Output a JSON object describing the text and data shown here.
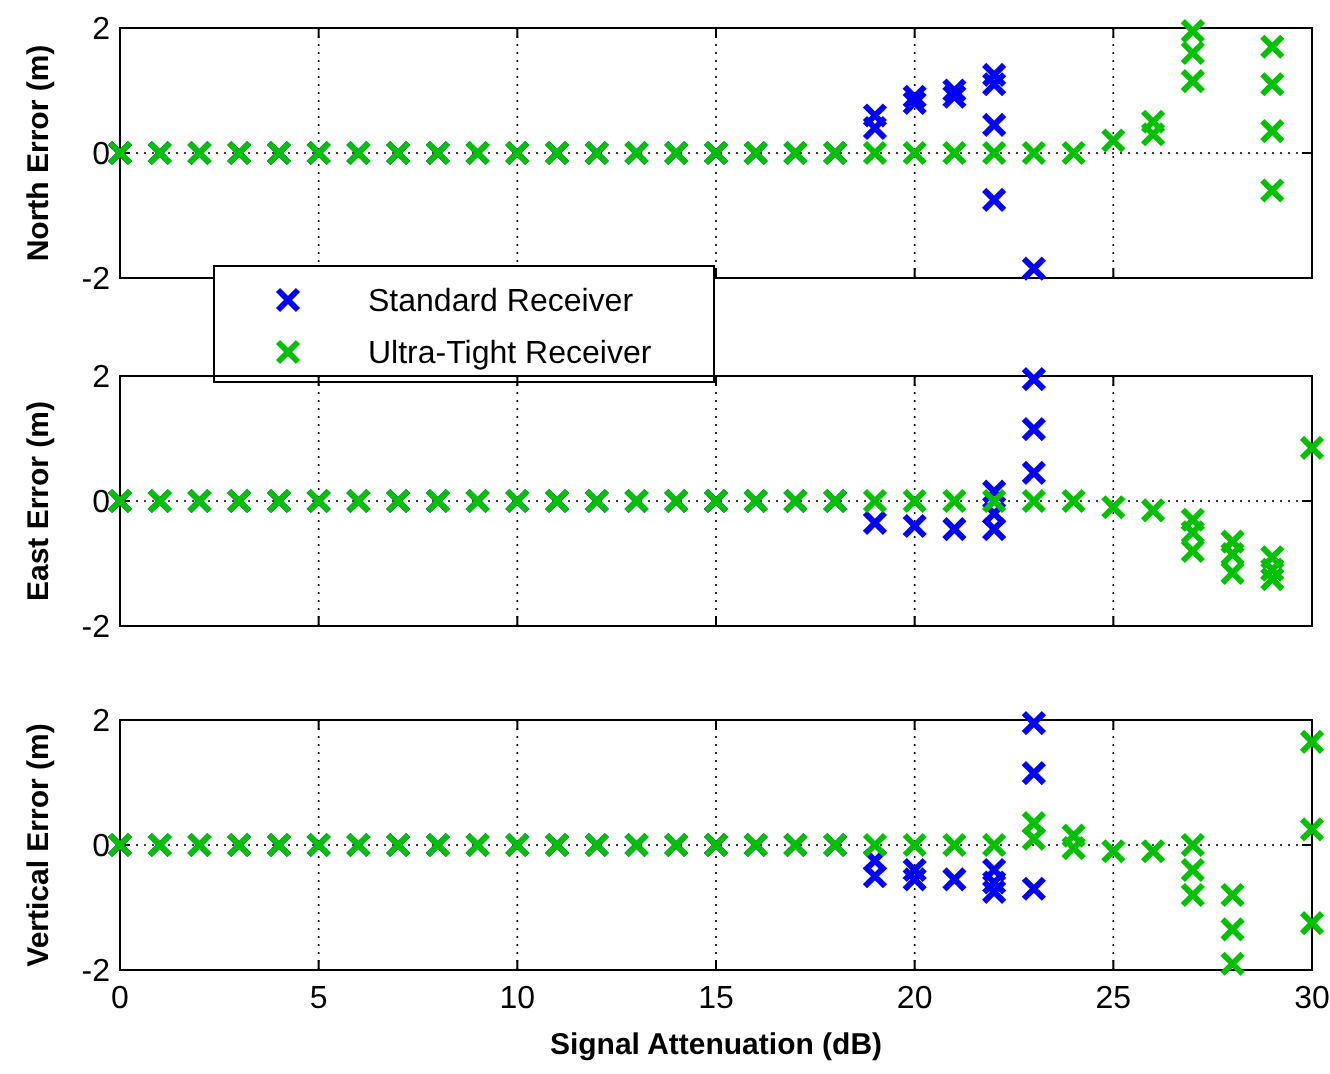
{
  "chart_data": [
    {
      "type": "scatter",
      "ylabel": "North Error (m)",
      "xlim": [
        0,
        30
      ],
      "xticks": [
        0,
        5,
        10,
        15,
        20,
        25,
        30
      ],
      "ylim": [
        -2,
        2
      ],
      "yticks": [
        -2,
        0,
        2
      ],
      "grid": true,
      "marker": "cross",
      "tick_labels": "y",
      "legend": "bottom left",
      "series": [
        {
          "name": "Standard Receiver",
          "color": "#0000ff",
          "x": [
            0,
            1,
            2,
            3,
            4,
            5,
            6,
            7,
            8,
            9,
            10,
            11,
            12,
            13,
            14,
            15,
            16,
            17,
            18,
            19,
            19,
            20,
            20,
            21,
            21,
            22,
            22,
            22,
            22,
            23
          ],
          "values": [
            0,
            0,
            0,
            0,
            0,
            0,
            0,
            0,
            0,
            0,
            0,
            0,
            0,
            0,
            0,
            0,
            0,
            0,
            0,
            0.6,
            0.4,
            0.9,
            0.8,
            1.0,
            0.9,
            1.25,
            1.1,
            0.45,
            -0.75,
            -1.85
          ]
        },
        {
          "name": "Ultra-Tight Receiver",
          "color": "#00c000",
          "x": [
            0,
            1,
            2,
            3,
            4,
            5,
            6,
            7,
            8,
            9,
            10,
            11,
            12,
            13,
            14,
            15,
            16,
            17,
            18,
            19,
            20,
            21,
            22,
            23,
            24,
            25,
            26,
            26,
            27,
            27,
            27,
            29,
            29,
            29,
            29
          ],
          "values": [
            0,
            0,
            0,
            0,
            0,
            0,
            0,
            0,
            0,
            0,
            0,
            0,
            0,
            0,
            0,
            0,
            0,
            0,
            0,
            0,
            0,
            0,
            0,
            0,
            0,
            0.2,
            0.5,
            0.3,
            1.95,
            1.6,
            1.15,
            1.7,
            1.1,
            0.35,
            -0.6
          ]
        }
      ]
    },
    {
      "type": "scatter",
      "ylabel": "East Error (m)",
      "xlim": [
        0,
        30
      ],
      "xticks": [
        0,
        5,
        10,
        15,
        20,
        25,
        30
      ],
      "ylim": [
        -2,
        2
      ],
      "yticks": [
        -2,
        0,
        2
      ],
      "grid": true,
      "marker": "cross",
      "tick_labels": "y",
      "series": [
        {
          "color": "#0000ff",
          "x": [
            0,
            1,
            2,
            3,
            4,
            5,
            6,
            7,
            8,
            9,
            10,
            11,
            12,
            13,
            14,
            15,
            16,
            17,
            18,
            19,
            20,
            21,
            22,
            22,
            22,
            23,
            23,
            23
          ],
          "values": [
            0,
            0,
            0,
            0,
            0,
            0,
            0,
            0,
            0,
            0,
            0,
            0,
            0,
            0,
            0,
            0,
            0,
            0,
            0,
            -0.35,
            -0.4,
            -0.45,
            0.15,
            -0.2,
            -0.45,
            1.95,
            1.15,
            0.45
          ]
        },
        {
          "color": "#00c000",
          "x": [
            0,
            1,
            2,
            3,
            4,
            5,
            6,
            7,
            8,
            9,
            10,
            11,
            12,
            13,
            14,
            15,
            16,
            17,
            18,
            19,
            20,
            21,
            22,
            23,
            24,
            25,
            26,
            27,
            27,
            27,
            28,
            28,
            28,
            29,
            29,
            29,
            30
          ],
          "values": [
            0,
            0,
            0,
            0,
            0,
            0,
            0,
            0,
            0,
            0,
            0,
            0,
            0,
            0,
            0,
            0,
            0,
            0,
            0,
            0,
            0,
            0,
            0,
            0,
            0,
            -0.1,
            -0.15,
            -0.3,
            -0.5,
            -0.8,
            -0.65,
            -0.85,
            -1.15,
            -0.9,
            -1.1,
            -1.25,
            0.85
          ]
        }
      ]
    },
    {
      "type": "scatter",
      "ylabel": "Vertical Error (m)",
      "xlabel": "Signal Attenuation (dB)",
      "xlim": [
        0,
        30
      ],
      "xticks": [
        0,
        5,
        10,
        15,
        20,
        25,
        30
      ],
      "ylim": [
        -2,
        2
      ],
      "yticks": [
        -2,
        0,
        2
      ],
      "grid": true,
      "marker": "cross",
      "series": [
        {
          "color": "#0000ff",
          "x": [
            0,
            1,
            2,
            3,
            4,
            5,
            6,
            7,
            8,
            9,
            10,
            11,
            12,
            13,
            14,
            15,
            16,
            17,
            18,
            19,
            19,
            20,
            20,
            21,
            22,
            22,
            22,
            23,
            23,
            23
          ],
          "values": [
            0,
            0,
            0,
            0,
            0,
            0,
            0,
            0,
            0,
            0,
            0,
            0,
            0,
            0,
            0,
            0,
            0,
            0,
            0,
            -0.25,
            -0.5,
            -0.4,
            -0.55,
            -0.55,
            -0.4,
            -0.6,
            -0.75,
            1.95,
            1.15,
            -0.7
          ]
        },
        {
          "color": "#00c000",
          "x": [
            0,
            1,
            2,
            3,
            4,
            5,
            6,
            7,
            8,
            9,
            10,
            11,
            12,
            13,
            14,
            15,
            16,
            17,
            18,
            19,
            20,
            21,
            22,
            23,
            23,
            24,
            24,
            25,
            26,
            27,
            27,
            27,
            28,
            28,
            28,
            30,
            30,
            30
          ],
          "values": [
            0,
            0,
            0,
            0,
            0,
            0,
            0,
            0,
            0,
            0,
            0,
            0,
            0,
            0,
            0,
            0,
            0,
            0,
            0,
            0,
            0,
            0,
            0,
            0.35,
            0.1,
            0.15,
            -0.05,
            -0.1,
            -0.1,
            0,
            -0.4,
            -0.8,
            -0.8,
            -1.35,
            -1.9,
            1.65,
            0.25,
            -1.25
          ]
        }
      ]
    }
  ]
}
